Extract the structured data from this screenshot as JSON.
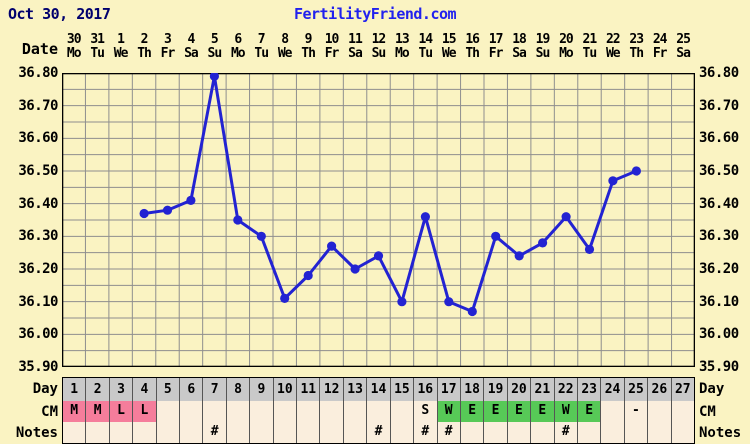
{
  "header": {
    "date_label": "Oct 30, 2017",
    "site": "FertilityFriend.com"
  },
  "axis": {
    "date_label": "Date",
    "dates": [
      "30",
      "31",
      "1",
      "2",
      "3",
      "4",
      "5",
      "6",
      "7",
      "8",
      "9",
      "10",
      "11",
      "12",
      "13",
      "14",
      "15",
      "16",
      "17",
      "18",
      "19",
      "20",
      "21",
      "22",
      "23",
      "24",
      "25"
    ],
    "weekdays": [
      "Mo",
      "Tu",
      "We",
      "Th",
      "Fr",
      "Sa",
      "Su",
      "Mo",
      "Tu",
      "We",
      "Th",
      "Fr",
      "Sa",
      "Su",
      "Mo",
      "Tu",
      "We",
      "Th",
      "Fr",
      "Sa",
      "Su",
      "Mo",
      "Tu",
      "We",
      "Th",
      "Fr",
      "Sa"
    ],
    "y_labels": [
      "36.80",
      "36.70",
      "36.60",
      "36.50",
      "36.40",
      "36.30",
      "36.20",
      "36.10",
      "36.00",
      "35.90"
    ]
  },
  "chart_data": {
    "type": "line",
    "title": "Basal body temperature chart (FertilityFriend.com), cycle starting Oct 30, 2017",
    "ylim": [
      35.9,
      36.8
    ],
    "y_tick_step": 0.1,
    "minor_grid_step": 0.05,
    "x_columns": 27,
    "grid": true,
    "points": [
      {
        "day": 4,
        "date": "2",
        "weekday": "Th",
        "temp": 36.37
      },
      {
        "day": 5,
        "date": "3",
        "weekday": "Fr",
        "temp": 36.38
      },
      {
        "day": 6,
        "date": "4",
        "weekday": "Sa",
        "temp": 36.41
      },
      {
        "day": 7,
        "date": "5",
        "weekday": "Su",
        "temp": 36.79
      },
      {
        "day": 8,
        "date": "6",
        "weekday": "Mo",
        "temp": 36.35
      },
      {
        "day": 9,
        "date": "7",
        "weekday": "Tu",
        "temp": 36.3
      },
      {
        "day": 10,
        "date": "8",
        "weekday": "We",
        "temp": 36.11
      },
      {
        "day": 11,
        "date": "9",
        "weekday": "Th",
        "temp": 36.18
      },
      {
        "day": 12,
        "date": "10",
        "weekday": "Fr",
        "temp": 36.27
      },
      {
        "day": 13,
        "date": "11",
        "weekday": "Sa",
        "temp": 36.2
      },
      {
        "day": 14,
        "date": "12",
        "weekday": "Su",
        "temp": 36.24
      },
      {
        "day": 15,
        "date": "13",
        "weekday": "Mo",
        "temp": 36.1
      },
      {
        "day": 16,
        "date": "14",
        "weekday": "Tu",
        "temp": 36.36
      },
      {
        "day": 17,
        "date": "15",
        "weekday": "We",
        "temp": 36.1
      },
      {
        "day": 18,
        "date": "16",
        "weekday": "Th",
        "temp": 36.07
      },
      {
        "day": 19,
        "date": "17",
        "weekday": "Fr",
        "temp": 36.3
      },
      {
        "day": 20,
        "date": "18",
        "weekday": "Sa",
        "temp": 36.24
      },
      {
        "day": 21,
        "date": "19",
        "weekday": "Su",
        "temp": 36.28
      },
      {
        "day": 22,
        "date": "20",
        "weekday": "Mo",
        "temp": 36.36
      },
      {
        "day": 23,
        "date": "21",
        "weekday": "Tu",
        "temp": 36.26
      },
      {
        "day": 24,
        "date": "22",
        "weekday": "We",
        "temp": 36.47
      },
      {
        "day": 25,
        "date": "23",
        "weekday": "Th",
        "temp": 36.5
      }
    ]
  },
  "table": {
    "day_label": "Day",
    "cm_label": "CM",
    "notes_label": "Notes",
    "days": [
      "1",
      "2",
      "3",
      "4",
      "5",
      "6",
      "7",
      "8",
      "9",
      "10",
      "11",
      "12",
      "13",
      "14",
      "15",
      "16",
      "17",
      "18",
      "19",
      "20",
      "21",
      "22",
      "23",
      "24",
      "25",
      "26",
      "27"
    ],
    "cm": [
      {
        "day": 1,
        "value": "M",
        "bg": "pink"
      },
      {
        "day": 2,
        "value": "M",
        "bg": "pink"
      },
      {
        "day": 3,
        "value": "L",
        "bg": "pink"
      },
      {
        "day": 4,
        "value": "L",
        "bg": "pink"
      },
      {
        "day": 16,
        "value": "S",
        "bg": "plain"
      },
      {
        "day": 17,
        "value": "W",
        "bg": "green"
      },
      {
        "day": 18,
        "value": "E",
        "bg": "green"
      },
      {
        "day": 19,
        "value": "E",
        "bg": "green"
      },
      {
        "day": 20,
        "value": "E",
        "bg": "green"
      },
      {
        "day": 21,
        "value": "E",
        "bg": "green"
      },
      {
        "day": 22,
        "value": "W",
        "bg": "green"
      },
      {
        "day": 23,
        "value": "E",
        "bg": "green"
      },
      {
        "day": 25,
        "value": "-",
        "bg": "plain"
      }
    ],
    "notes_symbol": "#",
    "notes_days": [
      7,
      14,
      16,
      17,
      22
    ]
  },
  "colors": {
    "background": "#faf3c2",
    "grid": "#8e8e8e",
    "chart_border": "#000000",
    "line": "#2323d2",
    "title_date": "#00006e",
    "site_link": "#2121ee",
    "day_row_bg": "#c9c9c9",
    "cm_pink": "#f57d9b",
    "cm_green": "#57c957",
    "empty_cell": "#faeedd"
  }
}
